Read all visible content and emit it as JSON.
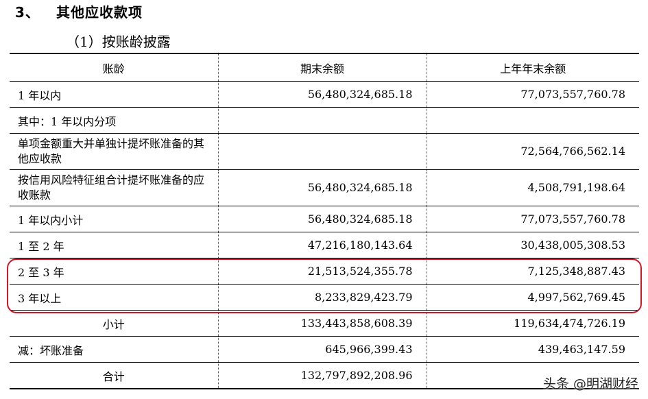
{
  "heading": {
    "number": "3、",
    "title": "其他应收款项"
  },
  "subheading": "（1）按账龄披露",
  "table": {
    "headers": [
      "账龄",
      "期末余额",
      "上年年末余额"
    ],
    "rows": [
      {
        "label": "1 年以内",
        "end": "56,480,324,685.18",
        "prior": "77,073,557,760.78"
      },
      {
        "label": "其中：1 年以内分项",
        "end": "",
        "prior": ""
      },
      {
        "label": "单项金额重大并单独计提坏账准备的其他应收款",
        "end": "",
        "prior": "72,564,766,562.14"
      },
      {
        "label": "按信用风险特征组合计提坏账准备的应收账款",
        "end": "56,480,324,685.18",
        "prior": "4,508,791,198.64"
      },
      {
        "label": "1 年以内小计",
        "end": "56,480,324,685.18",
        "prior": "77,073,557,760.78"
      },
      {
        "label": "1 至 2 年",
        "end": "47,216,180,143.64",
        "prior": "30,438,005,308.53"
      },
      {
        "label": "2 至 3 年",
        "end": "21,513,524,355.78",
        "prior": "7,125,348,887.43"
      },
      {
        "label": "3 年以上",
        "end": "8,233,829,423.79",
        "prior": "4,997,562,769.45"
      },
      {
        "label": "小计",
        "end": "133,443,858,608.39",
        "prior": "119,634,474,726.19"
      },
      {
        "label": "减：坏账准备",
        "end": "645,966,399.43",
        "prior": "439,463,147.59"
      },
      {
        "label": "合计",
        "end": "132,797,892,208.96",
        "prior": ""
      }
    ]
  },
  "highlight_color": "#d2162a",
  "watermark": "头条 @明湖财经"
}
